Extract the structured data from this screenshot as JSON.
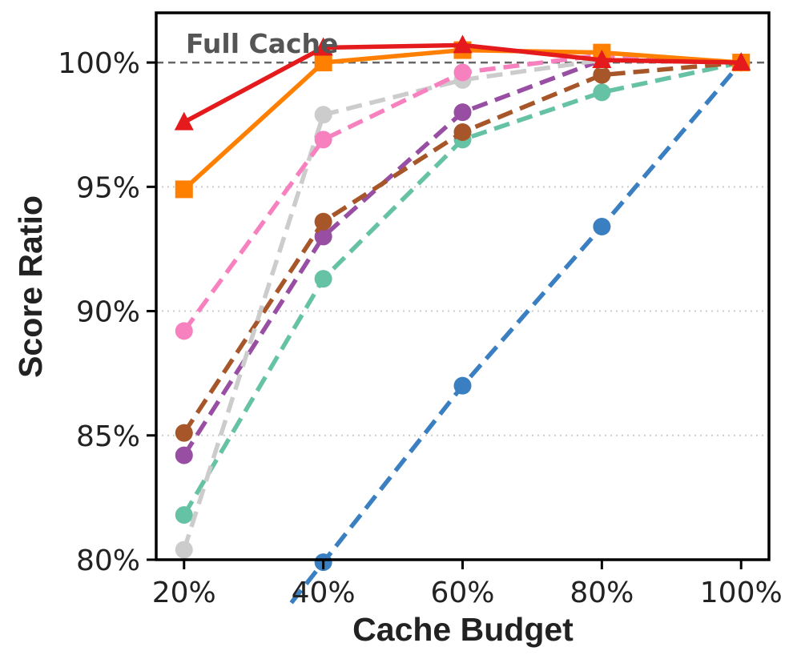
{
  "chart_data": {
    "type": "line",
    "xlabel": "Cache Budget",
    "ylabel": "Score Ratio",
    "x": [
      20,
      40,
      60,
      80,
      100
    ],
    "x_tick_labels": [
      "20%",
      "40%",
      "60%",
      "80%",
      "100%"
    ],
    "ylim": [
      80,
      102
    ],
    "y_ticks": [
      80,
      85,
      90,
      95,
      100
    ],
    "y_tick_labels": [
      "80%",
      "85%",
      "90%",
      "95%",
      "100%"
    ],
    "grid": "horizontal dotted",
    "reference_line": {
      "label": "Full Cache",
      "value": 100
    },
    "series": [
      {
        "color": "#3a7fc1",
        "style": "dashed",
        "marker": "circle",
        "values": [
          null,
          79.9,
          87.0,
          93.4,
          100
        ]
      },
      {
        "color": "#66c2a5",
        "style": "dashed",
        "marker": "circle",
        "values": [
          81.8,
          91.3,
          96.9,
          98.8,
          100
        ]
      },
      {
        "color": "#984ea3",
        "style": "dashed",
        "marker": "circle",
        "values": [
          84.2,
          93.0,
          98.0,
          100.1,
          100
        ]
      },
      {
        "color": "#a65628",
        "style": "dashed",
        "marker": "circle",
        "values": [
          85.1,
          93.6,
          97.2,
          99.5,
          100
        ]
      },
      {
        "color": "#cccccc",
        "style": "dashed",
        "marker": "circle",
        "values": [
          80.4,
          97.9,
          99.3,
          100.1,
          100
        ]
      },
      {
        "color": "#f781bf",
        "style": "dashed",
        "marker": "circle",
        "values": [
          89.2,
          96.9,
          99.6,
          100.3,
          100
        ]
      },
      {
        "color": "#ff7f00",
        "style": "solid",
        "marker": "square",
        "values": [
          94.9,
          100.0,
          100.5,
          100.4,
          100
        ]
      },
      {
        "color": "#e41a1c",
        "style": "solid",
        "marker": "triangle",
        "values": [
          97.6,
          100.6,
          100.7,
          100.1,
          100
        ]
      }
    ]
  }
}
